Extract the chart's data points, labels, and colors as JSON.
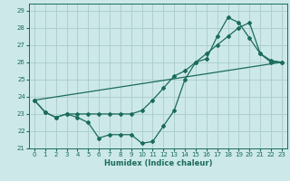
{
  "xlabel": "Humidex (Indice chaleur)",
  "bg_color": "#cce8e8",
  "grid_color": "#aacccc",
  "line_color": "#1a6b5a",
  "xlim": [
    -0.5,
    23.5
  ],
  "ylim": [
    21.0,
    29.4
  ],
  "xticks": [
    0,
    1,
    2,
    3,
    4,
    5,
    6,
    7,
    8,
    9,
    10,
    11,
    12,
    13,
    14,
    15,
    16,
    17,
    18,
    19,
    20,
    21,
    22,
    23
  ],
  "yticks": [
    21,
    22,
    23,
    24,
    25,
    26,
    27,
    28,
    29
  ],
  "series_zigzag_x": [
    0,
    1,
    2,
    3,
    4,
    5,
    6,
    7,
    8,
    9,
    10,
    11,
    12,
    13,
    14,
    15,
    16,
    17,
    18,
    19,
    20,
    21,
    22,
    23
  ],
  "series_zigzag_y": [
    23.8,
    23.1,
    22.8,
    23.0,
    22.8,
    22.5,
    21.6,
    21.8,
    21.8,
    21.8,
    21.3,
    21.4,
    22.3,
    23.2,
    25.0,
    26.0,
    26.2,
    27.5,
    28.6,
    28.3,
    27.4,
    26.5,
    26.1,
    26.0
  ],
  "series_smooth_x": [
    0,
    1,
    2,
    3,
    4,
    5,
    6,
    7,
    8,
    9,
    10,
    11,
    12,
    13,
    14,
    15,
    16,
    17,
    18,
    19,
    20,
    21,
    22,
    23
  ],
  "series_smooth_y": [
    23.8,
    23.1,
    22.8,
    23.0,
    23.0,
    23.0,
    23.0,
    23.0,
    23.0,
    23.0,
    23.2,
    23.8,
    24.5,
    25.2,
    25.5,
    26.0,
    26.5,
    27.0,
    27.5,
    28.0,
    28.3,
    26.5,
    26.0,
    26.0
  ],
  "series_line_x": [
    0,
    23
  ],
  "series_line_y": [
    23.8,
    26.0
  ]
}
